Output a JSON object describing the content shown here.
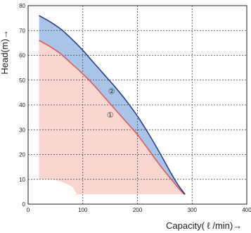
{
  "chart_data": {
    "type": "area",
    "xlabel": "Capacity( ℓ /min)→",
    "ylabel": "Head(m)→",
    "xlim": [
      0,
      400
    ],
    "ylim": [
      0,
      80
    ],
    "xticks": [
      0,
      100,
      200,
      300,
      400
    ],
    "yticks": [
      0,
      10,
      20,
      30,
      40,
      50,
      60,
      70,
      80
    ],
    "grid": true,
    "grid_style": "dashed",
    "series": [
      {
        "name": "①",
        "x": [
          20,
          40,
          60,
          80,
          100,
          120,
          140,
          160,
          180,
          200,
          220,
          240,
          260,
          275,
          285
        ],
        "y": [
          66,
          63.5,
          60.5,
          56.5,
          52.5,
          48,
          43,
          38,
          33,
          28,
          22,
          16,
          10.5,
          6.5,
          4
        ],
        "color": "#e05a56",
        "fill": "#f9d6d0"
      },
      {
        "name": "②",
        "x": [
          20,
          40,
          60,
          80,
          100,
          120,
          140,
          160,
          180,
          200,
          220,
          240,
          260,
          275,
          287
        ],
        "y": [
          76,
          73.5,
          70.5,
          66.5,
          62,
          57,
          52,
          47,
          41.5,
          35.5,
          28.5,
          21,
          13,
          7.5,
          4
        ],
        "color": "#2a3f8f",
        "fill": "#a9c4e6"
      }
    ],
    "region_floor": {
      "x": [
        20,
        40,
        60,
        80,
        90,
        100,
        285
      ],
      "y": [
        10,
        10,
        9,
        7,
        4,
        4,
        4
      ]
    }
  }
}
